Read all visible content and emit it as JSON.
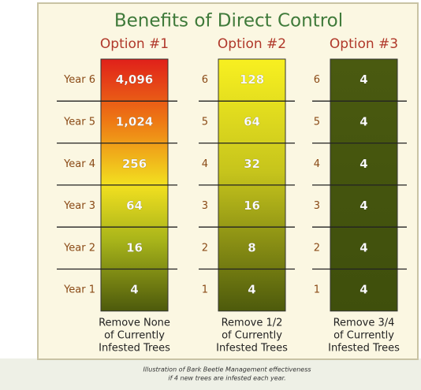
{
  "title": "Benefits of Direct Control",
  "options": [
    {
      "header": "Option #1",
      "row_labels": [
        "Year 6",
        "Year 5",
        "Year 4",
        "Year 3",
        "Year 2",
        "Year 1"
      ],
      "values": [
        "4,096",
        "1,024",
        "256",
        "64",
        "16",
        "4"
      ],
      "caption": [
        "Remove None",
        "of Currently",
        "Infested Trees"
      ]
    },
    {
      "header": "Option #2",
      "row_labels": [
        "6",
        "5",
        "4",
        "3",
        "2",
        "1"
      ],
      "values": [
        "128",
        "64",
        "32",
        "16",
        "8",
        "4"
      ],
      "caption": [
        "Remove 1/2",
        "of Currently",
        "Infested Trees"
      ]
    },
    {
      "header": "Option #3",
      "row_labels": [
        "6",
        "5",
        "4",
        "3",
        "2",
        "1"
      ],
      "values": [
        "4",
        "4",
        "4",
        "4",
        "4",
        "4"
      ],
      "caption": [
        "Remove 3/4",
        "of Currently",
        "Infested Trees"
      ]
    }
  ],
  "footnote": [
    "Illustration of Bark Beetle Management effectiveness",
    "if 4 new trees are infested each year."
  ]
}
